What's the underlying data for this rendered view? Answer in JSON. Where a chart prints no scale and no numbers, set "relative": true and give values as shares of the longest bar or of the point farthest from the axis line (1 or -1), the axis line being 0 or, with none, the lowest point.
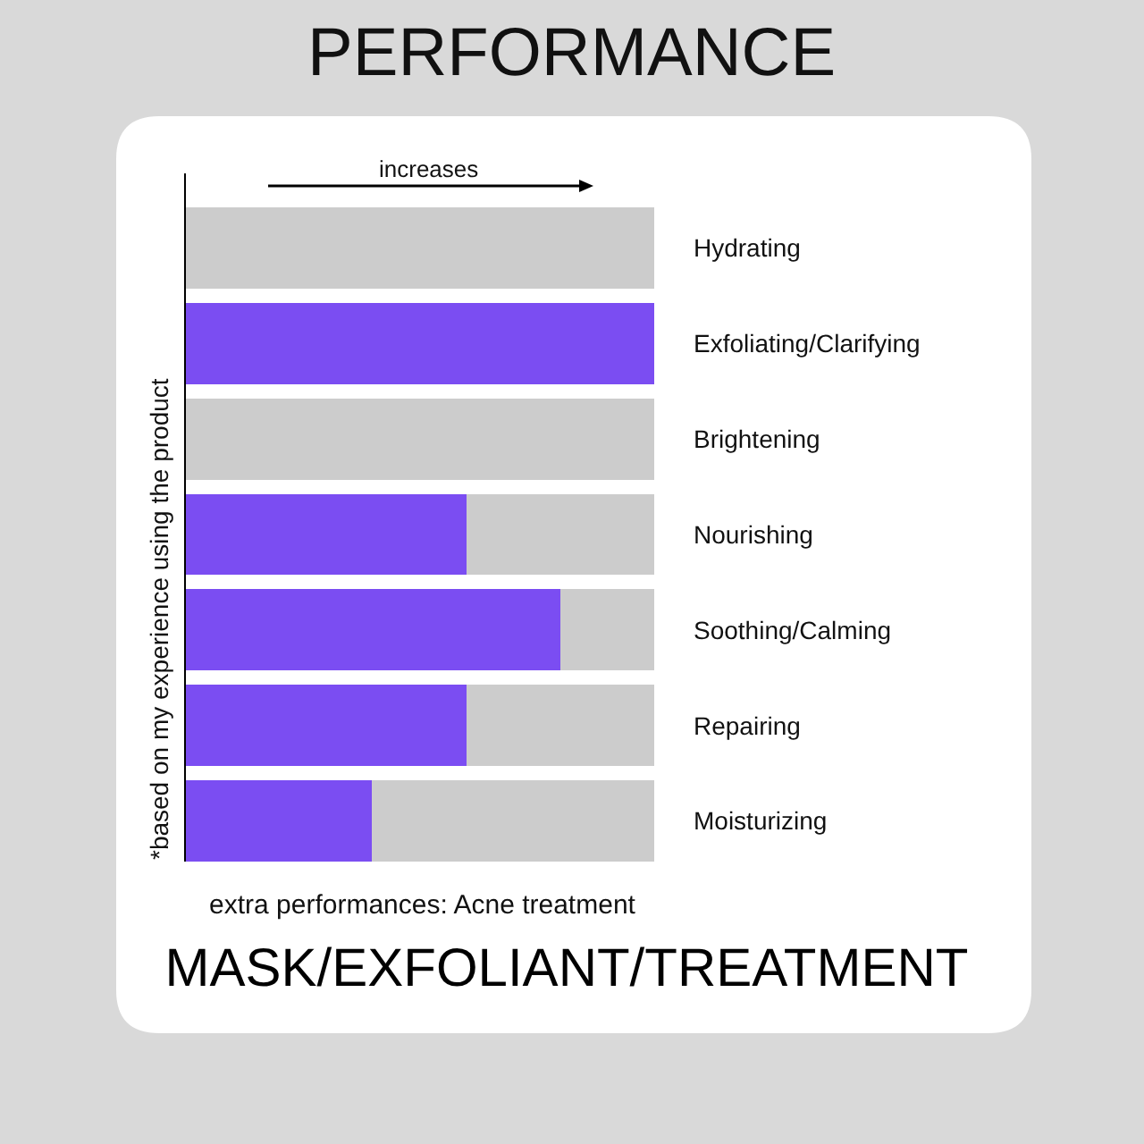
{
  "chart_data": {
    "type": "bar",
    "orientation": "horizontal",
    "stacked": true,
    "relative": true,
    "tick_labels": "y",
    "title": "MASK/EXFOLIANT/TREATMENT",
    "subtitle": "PERFORMANCE",
    "xlabel": "increases",
    "ylabel": "*based on my experience using the product",
    "annotations": [
      "extra performances: Acne treatment"
    ],
    "categories": [
      "Hydrating",
      "Exfoliating/Clarifying",
      "Brightening",
      "Nourishing",
      "Soothing/Calming",
      "Repairing",
      "Moisturizing"
    ],
    "series": [
      {
        "color": "#7b4df2",
        "values": [
          0,
          1,
          0,
          0.6,
          0.8,
          0.6,
          0.4
        ]
      },
      {
        "color": "#cccccc",
        "values": [
          1,
          0,
          1,
          0.4,
          0.2,
          0.4,
          0.6
        ]
      }
    ]
  }
}
